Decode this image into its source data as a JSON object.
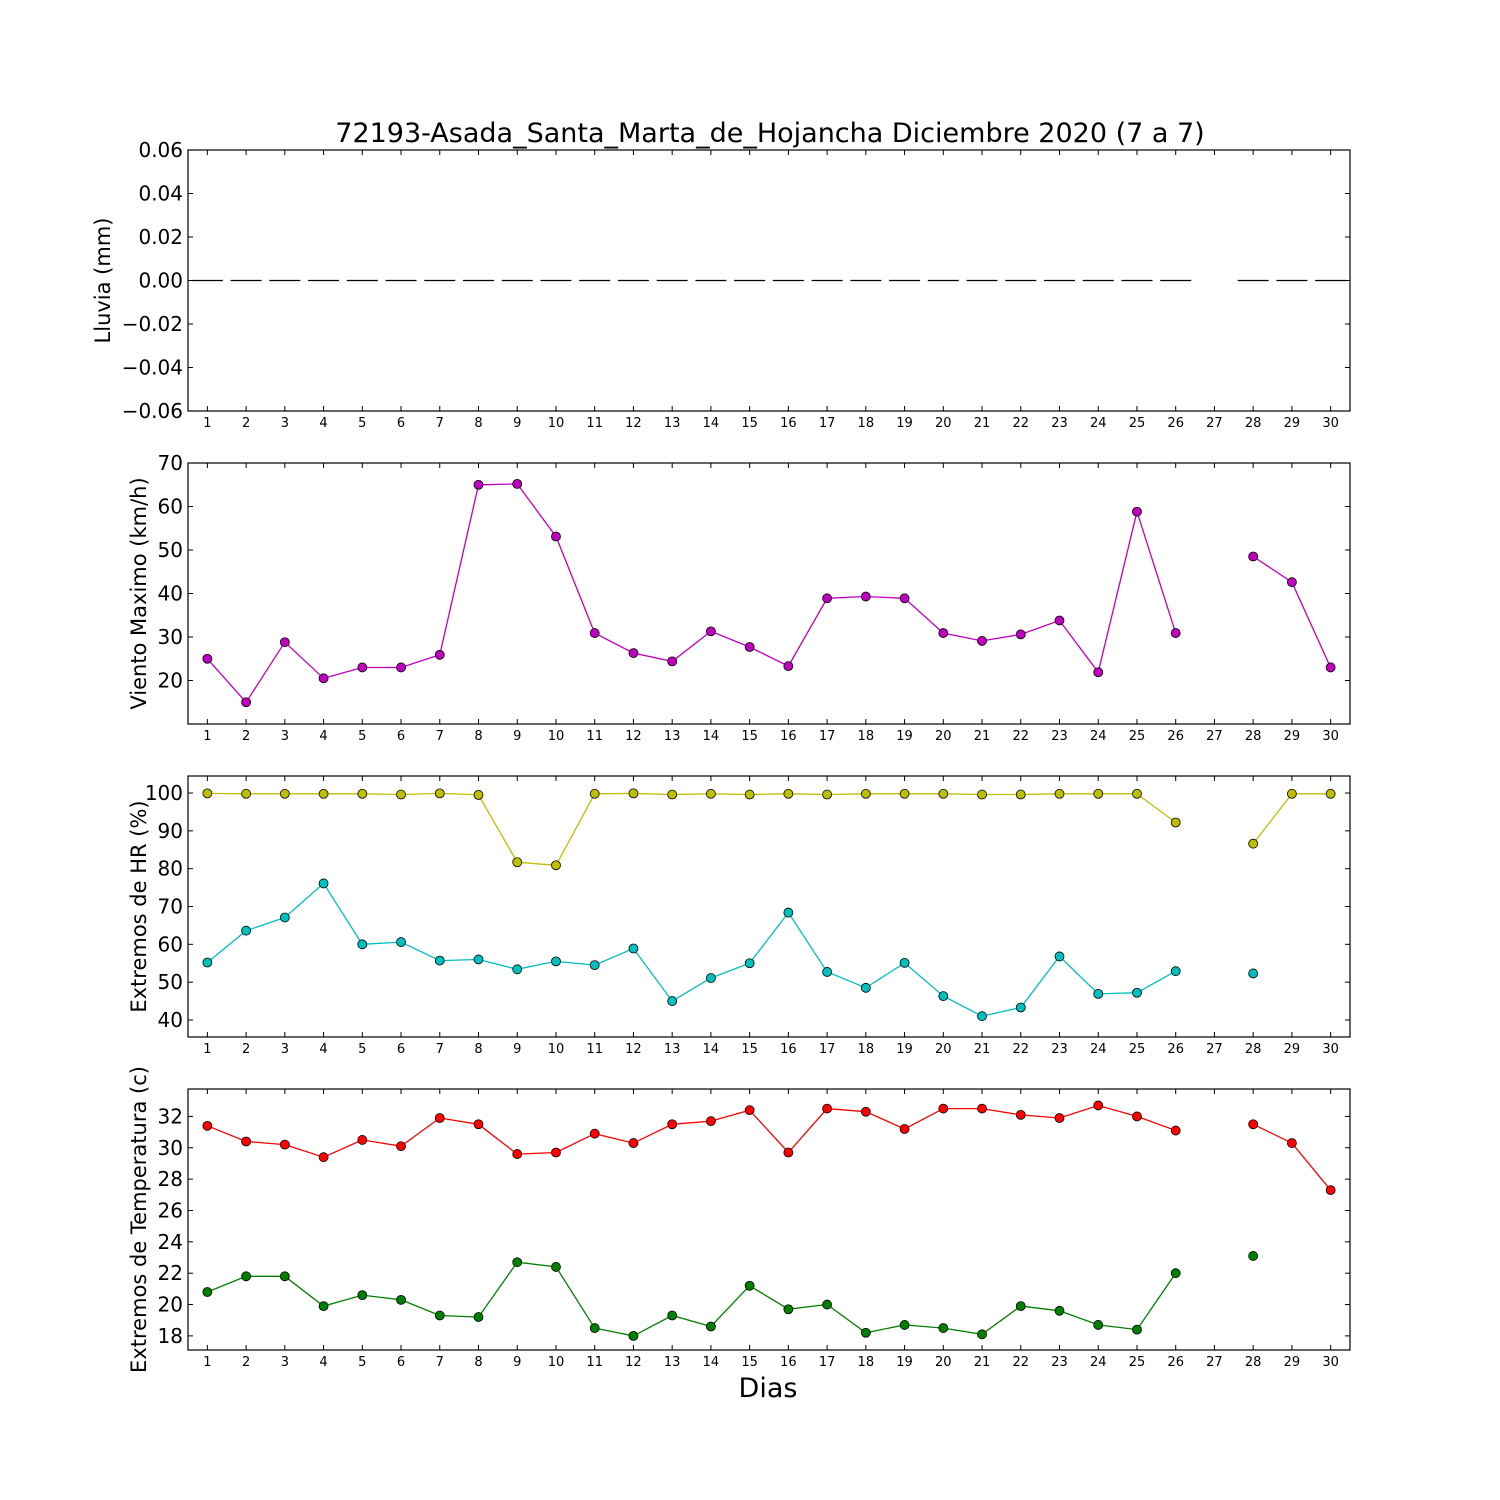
{
  "title": "72193-Asada_Santa_Marta_de_Hojancha Diciembre 2020  (7 a 7)",
  "xlabel": "Dias",
  "chart_data": [
    {
      "type": "line",
      "ylabel": "Lluvia (mm)",
      "ylim": [
        -0.06,
        0.06
      ],
      "yticks": [
        -0.06,
        -0.04,
        -0.02,
        0.0,
        0.02,
        0.04,
        0.06
      ],
      "ytick_labels": [
        "−0.06",
        "−0.04",
        "−0.02",
        "0.00",
        "0.02",
        "0.04",
        "0.06"
      ],
      "xticks": [
        "1",
        "2",
        "3",
        "4",
        "5",
        "6",
        "7",
        "8",
        "9",
        "10",
        "11",
        "12",
        "13",
        "14",
        "15",
        "16",
        "17",
        "18",
        "19",
        "20",
        "21",
        "22",
        "23",
        "24",
        "25",
        "26",
        "27",
        "28",
        "29",
        "30"
      ],
      "series": [
        {
          "color": "#000000",
          "style": "bar-dash",
          "marker": "none",
          "values": [
            0,
            0,
            0,
            0,
            0,
            0,
            0,
            0,
            0,
            0,
            0,
            0,
            0,
            0,
            0,
            0,
            0,
            0,
            0,
            0,
            0,
            0,
            0,
            0,
            0,
            0,
            null,
            0,
            0,
            0
          ]
        }
      ]
    },
    {
      "type": "line",
      "ylabel": "Viento Maximo (km/h)",
      "ylim": [
        10,
        70
      ],
      "yticks": [
        20,
        30,
        40,
        50,
        60,
        70
      ],
      "ytick_labels": [
        "20",
        "30",
        "40",
        "50",
        "60",
        "70"
      ],
      "xticks": [
        "1",
        "2",
        "3",
        "4",
        "5",
        "6",
        "7",
        "8",
        "9",
        "10",
        "11",
        "12",
        "13",
        "14",
        "15",
        "16",
        "17",
        "18",
        "19",
        "20",
        "21",
        "22",
        "23",
        "24",
        "25",
        "26",
        "27",
        "28",
        "29",
        "30"
      ],
      "series": [
        {
          "color": "#bf00bf",
          "style": "line",
          "marker": "circle",
          "values": [
            25.0,
            15.0,
            28.8,
            20.5,
            23.0,
            23.0,
            25.9,
            65.0,
            65.2,
            53.1,
            30.9,
            26.3,
            24.4,
            31.3,
            27.7,
            23.3,
            38.9,
            39.3,
            38.9,
            30.9,
            29.1,
            30.6,
            33.8,
            21.9,
            58.8,
            30.9,
            null,
            48.5,
            42.6,
            23.0
          ]
        }
      ]
    },
    {
      "type": "line",
      "ylabel": "Extremos de HR (%)",
      "ylim": [
        35.5,
        104.5
      ],
      "yticks": [
        40,
        50,
        60,
        70,
        80,
        90,
        100
      ],
      "ytick_labels": [
        "40",
        "50",
        "60",
        "70",
        "80",
        "90",
        "100"
      ],
      "xticks": [
        "1",
        "2",
        "3",
        "4",
        "5",
        "6",
        "7",
        "8",
        "9",
        "10",
        "11",
        "12",
        "13",
        "14",
        "15",
        "16",
        "17",
        "18",
        "19",
        "20",
        "21",
        "22",
        "23",
        "24",
        "25",
        "26",
        "27",
        "28",
        "29",
        "30"
      ],
      "series": [
        {
          "color": "#bfbf00",
          "style": "line",
          "marker": "circle",
          "values": [
            99.9,
            99.8,
            99.8,
            99.8,
            99.8,
            99.6,
            99.9,
            99.5,
            81.7,
            80.9,
            99.8,
            99.9,
            99.6,
            99.8,
            99.6,
            99.8,
            99.6,
            99.8,
            99.8,
            99.8,
            99.6,
            99.6,
            99.8,
            99.8,
            99.8,
            92.2,
            null,
            86.6,
            99.8,
            99.8
          ]
        },
        {
          "color": "#00bfbf",
          "style": "line",
          "marker": "circle",
          "values": [
            55.2,
            63.6,
            67.1,
            76.1,
            60.0,
            60.6,
            55.7,
            56.0,
            53.4,
            55.5,
            54.5,
            58.9,
            45.0,
            51.1,
            55.0,
            68.4,
            52.7,
            48.5,
            55.1,
            46.3,
            41.0,
            43.3,
            56.8,
            46.9,
            47.2,
            52.9,
            null,
            52.3,
            null,
            null
          ]
        }
      ]
    },
    {
      "type": "line",
      "ylabel": "Extremos de Temperatura (c)",
      "ylim": [
        17.1,
        33.75
      ],
      "yticks": [
        18,
        20,
        22,
        24,
        26,
        28,
        30,
        32
      ],
      "ytick_labels": [
        "18",
        "20",
        "22",
        "24",
        "26",
        "28",
        "30",
        "32"
      ],
      "xticks": [
        "1",
        "2",
        "3",
        "4",
        "5",
        "6",
        "7",
        "8",
        "9",
        "10",
        "11",
        "12",
        "13",
        "14",
        "15",
        "16",
        "17",
        "18",
        "19",
        "20",
        "21",
        "22",
        "23",
        "24",
        "25",
        "26",
        "27",
        "28",
        "29",
        "30"
      ],
      "series": [
        {
          "color": "#ff0000",
          "style": "line",
          "marker": "circle",
          "values": [
            31.4,
            30.4,
            30.2,
            29.4,
            30.5,
            30.1,
            31.9,
            31.5,
            29.6,
            29.7,
            30.9,
            30.3,
            31.5,
            31.7,
            32.4,
            29.7,
            32.5,
            32.3,
            31.2,
            32.5,
            32.5,
            32.1,
            31.9,
            32.7,
            32.0,
            31.1,
            null,
            31.5,
            30.3,
            27.3
          ]
        },
        {
          "color": "#007f00",
          "style": "line",
          "marker": "circle",
          "values": [
            20.8,
            21.8,
            21.8,
            19.9,
            20.6,
            20.3,
            19.3,
            19.2,
            22.7,
            22.4,
            18.5,
            18.0,
            19.3,
            18.6,
            21.2,
            19.7,
            20.0,
            18.2,
            18.7,
            18.5,
            18.1,
            19.9,
            19.6,
            18.7,
            18.4,
            22.0,
            null,
            23.1,
            null,
            null
          ]
        }
      ]
    }
  ]
}
